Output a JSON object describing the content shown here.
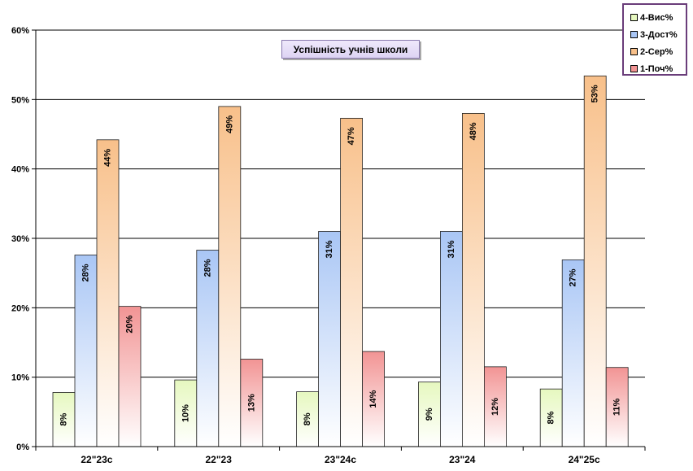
{
  "chart_data": {
    "type": "bar",
    "title": "Успішність учнів школи",
    "categories": [
      "22\"23с",
      "22\"23",
      "23\"24с",
      "23\"24",
      "24\"25с"
    ],
    "ylim": [
      0,
      60
    ],
    "yticks": [
      "0%",
      "10%",
      "20%",
      "30%",
      "40%",
      "50%",
      "60%"
    ],
    "grid": true,
    "legend_position": "top-right",
    "series": [
      {
        "name": "4-Вис%",
        "color": "#e6f8bf",
        "values": [
          7.8,
          9.6,
          7.9,
          9.3,
          8.3
        ],
        "labels": [
          "8%",
          "10%",
          "8%",
          "9%",
          "8%"
        ]
      },
      {
        "name": "3-Дост%",
        "color": "#a9c6f5",
        "values": [
          27.6,
          28.3,
          31.0,
          31.0,
          26.9
        ],
        "labels": [
          "28%",
          "28%",
          "31%",
          "31%",
          "27%"
        ]
      },
      {
        "name": "2-Сер%",
        "color": "#f8c08a",
        "values": [
          44.2,
          49.0,
          47.3,
          48.0,
          53.4
        ],
        "labels": [
          "44%",
          "49%",
          "47%",
          "48%",
          "53%"
        ]
      },
      {
        "name": "1-Поч%",
        "color": "#f29494",
        "values": [
          20.2,
          12.6,
          13.7,
          11.5,
          11.4
        ],
        "labels": [
          "20%",
          "13%",
          "14%",
          "12%",
          "11%"
        ]
      }
    ]
  }
}
